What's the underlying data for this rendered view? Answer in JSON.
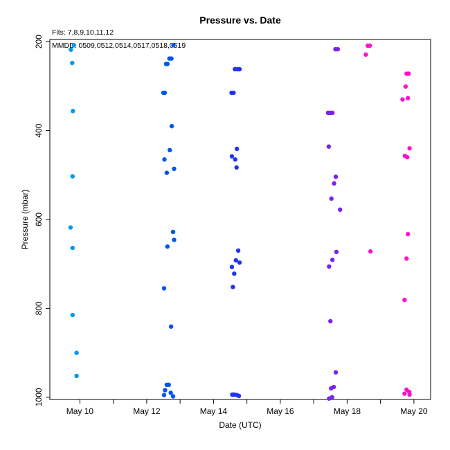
{
  "chart_data": {
    "type": "scatter",
    "title": "Pressure  vs. Date",
    "fits_note": "Fits: 7,8,9,10,11,12",
    "mmdd_note": "MMDD: 0509,0512,0514,0517,0518,0519",
    "xlabel": "Date (UTC)",
    "ylabel": "Pressure (mbar)",
    "x_unit": "days (May)",
    "xlim": [
      9.1,
      20.5
    ],
    "ylim": [
      1005,
      195
    ],
    "y_axis_inverted": true,
    "grid": false,
    "x_ticks": [
      {
        "value": 10,
        "label": "May 10"
      },
      {
        "value": 11,
        "label": ""
      },
      {
        "value": 12,
        "label": "May 12"
      },
      {
        "value": 13,
        "label": ""
      },
      {
        "value": 14,
        "label": "May 14"
      },
      {
        "value": 15,
        "label": ""
      },
      {
        "value": 16,
        "label": "May 16"
      },
      {
        "value": 17,
        "label": ""
      },
      {
        "value": 18,
        "label": "May 18"
      },
      {
        "value": 19,
        "label": ""
      },
      {
        "value": 20,
        "label": "May 20"
      }
    ],
    "y_ticks": [
      {
        "value": 200,
        "label": "200"
      },
      {
        "value": 400,
        "label": "400"
      },
      {
        "value": 600,
        "label": "600"
      },
      {
        "value": 800,
        "label": "800"
      },
      {
        "value": 1000,
        "label": "1000"
      }
    ],
    "series": [
      {
        "color": "#0099ee",
        "points": [
          [
            9.82,
            208
          ],
          [
            9.73,
            218
          ],
          [
            9.77,
            248
          ],
          [
            9.79,
            356
          ],
          [
            9.78,
            503
          ],
          [
            9.72,
            618
          ],
          [
            9.78,
            664
          ],
          [
            9.78,
            815
          ],
          [
            9.9,
            900
          ],
          [
            9.9,
            952
          ]
        ]
      },
      {
        "color": "#0055ee",
        "points": [
          [
            12.8,
            208
          ],
          [
            12.68,
            238
          ],
          [
            12.74,
            238
          ],
          [
            12.58,
            250
          ],
          [
            12.62,
            250
          ],
          [
            12.5,
            315
          ],
          [
            12.54,
            315
          ],
          [
            12.75,
            390
          ],
          [
            12.69,
            444
          ],
          [
            12.53,
            465
          ],
          [
            12.82,
            486
          ],
          [
            12.6,
            495
          ],
          [
            12.79,
            628
          ],
          [
            12.82,
            646
          ],
          [
            12.62,
            661
          ],
          [
            12.52,
            755
          ],
          [
            12.73,
            841
          ],
          [
            12.6,
            972
          ],
          [
            12.66,
            972
          ],
          [
            12.55,
            984
          ],
          [
            12.72,
            990
          ],
          [
            12.52,
            995
          ],
          [
            12.79,
            998
          ]
        ]
      },
      {
        "color": "#2233ee",
        "points": [
          [
            14.64,
            262
          ],
          [
            14.72,
            262
          ],
          [
            14.78,
            262
          ],
          [
            14.54,
            315
          ],
          [
            14.6,
            315
          ],
          [
            14.7,
            441
          ],
          [
            14.55,
            458
          ],
          [
            14.65,
            465
          ],
          [
            14.69,
            483
          ],
          [
            14.74,
            670
          ],
          [
            14.67,
            692
          ],
          [
            14.78,
            697
          ],
          [
            14.55,
            707
          ],
          [
            14.62,
            722
          ],
          [
            14.58,
            752
          ],
          [
            14.56,
            994
          ],
          [
            14.62,
            994
          ],
          [
            14.7,
            995
          ],
          [
            14.76,
            997
          ]
        ]
      },
      {
        "color": "#7a22ee",
        "points": [
          [
            17.65,
            217
          ],
          [
            17.72,
            217
          ],
          [
            17.43,
            360
          ],
          [
            17.5,
            360
          ],
          [
            17.56,
            360
          ],
          [
            17.45,
            436
          ],
          [
            17.66,
            504
          ],
          [
            17.61,
            519
          ],
          [
            17.53,
            553
          ],
          [
            17.79,
            578
          ],
          [
            17.68,
            673
          ],
          [
            17.56,
            691
          ],
          [
            17.46,
            706
          ],
          [
            17.5,
            829
          ],
          [
            17.66,
            944
          ],
          [
            17.52,
            980
          ],
          [
            17.6,
            977
          ],
          [
            17.55,
            1000
          ],
          [
            17.46,
            1003
          ]
        ]
      },
      {
        "color": "#ff11cc",
        "points": [
          [
            18.62,
            209
          ],
          [
            18.68,
            209
          ],
          [
            18.56,
            229
          ],
          [
            19.78,
            272
          ],
          [
            19.84,
            272
          ],
          [
            19.75,
            301
          ],
          [
            19.82,
            327
          ],
          [
            19.66,
            330
          ],
          [
            19.87,
            440
          ],
          [
            19.73,
            457
          ],
          [
            19.8,
            460
          ],
          [
            19.82,
            633
          ],
          [
            19.78,
            688
          ],
          [
            18.7,
            672
          ],
          [
            19.72,
            781
          ],
          [
            19.78,
            983
          ],
          [
            19.86,
            988
          ],
          [
            19.72,
            992
          ],
          [
            19.87,
            994
          ]
        ]
      }
    ]
  }
}
